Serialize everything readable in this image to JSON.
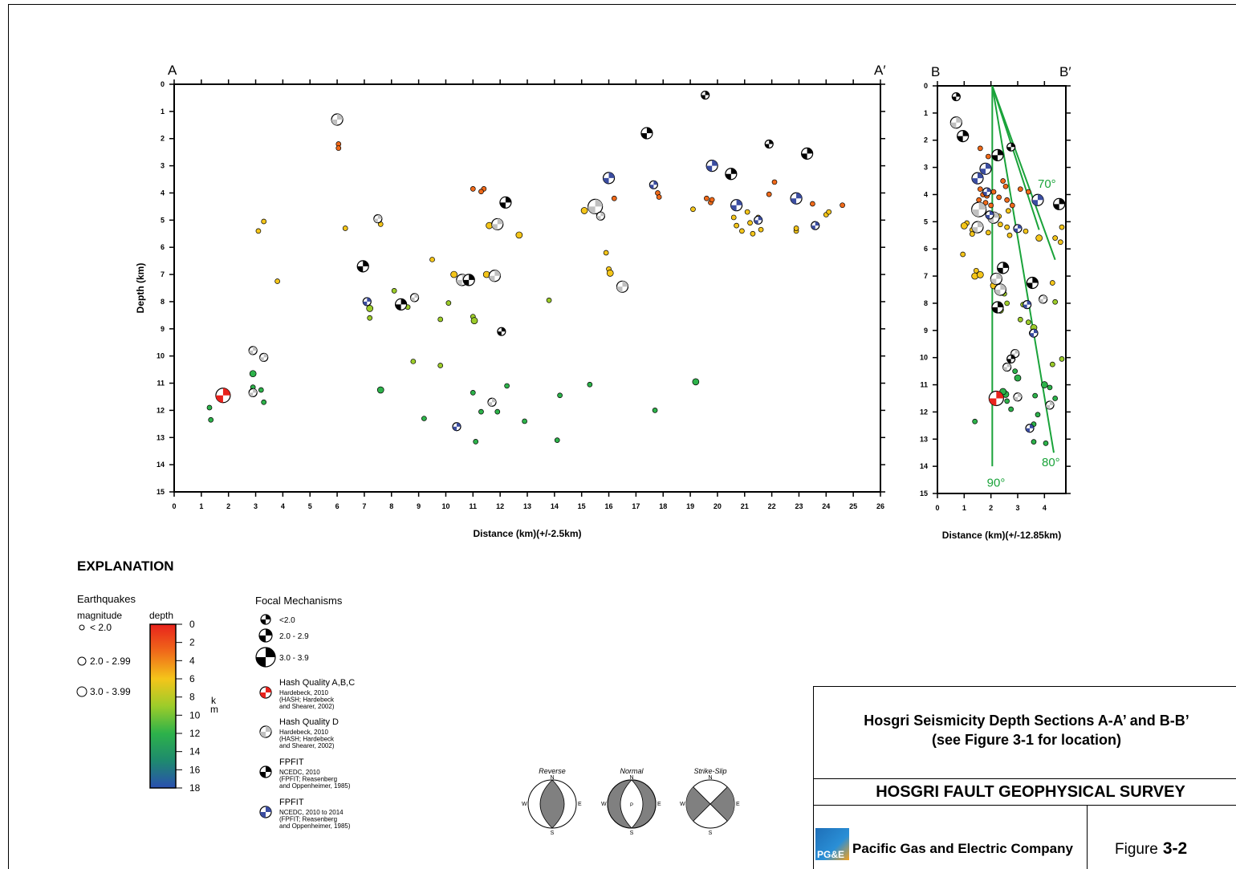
{
  "figure": {
    "explanation_title": "EXPLANATION",
    "title_line1": "Hosgri Seismicity Depth Sections A-A’ and B-B’",
    "title_line2": "(see Figure 3-1 for location)",
    "survey": "HOSGRI FAULT GEOPHYSICAL SURVEY",
    "company": "Pacific Gas and Electric Company",
    "figure_label": "Figure",
    "figure_number": "3-2",
    "logo_text": "PG&E"
  },
  "legend": {
    "earthquakes_title": "Earthquakes",
    "magnitude_label": "magnitude",
    "depth_label": "depth",
    "mag_classes": [
      "< 2.0",
      "2.0 - 2.99",
      "3.0 - 3.99"
    ],
    "depth_ticks": [
      "0",
      "2",
      "4",
      "6",
      "8",
      "10",
      "12",
      "14",
      "16",
      "18"
    ],
    "depth_unit_k": "k",
    "depth_unit_m": "m",
    "focal_title": "Focal Mechanisms",
    "focal_sizes": [
      "<2.0",
      "2.0 - 2.9",
      "3.0 - 3.9"
    ],
    "focal_types": [
      {
        "title": "Hash Quality A,B,C",
        "lines": [
          "Hardebeck, 2010",
          "(HASH; Hardebeck",
          "and Shearer, 2002)"
        ],
        "color": "#e8221c"
      },
      {
        "title": "Hash Quality D",
        "lines": [
          "Hardebeck, 2010",
          "(HASH; Hardebeck",
          "and Shearer, 2002)"
        ],
        "color": "#c0c0c0"
      },
      {
        "title": "FPFIT",
        "lines": [
          "NCEDC, 2010",
          "(FPFIT; Reasenberg",
          "and Oppenheimer, 1985)"
        ],
        "color": "#000000"
      },
      {
        "title": "FPFIT",
        "lines": [
          "NCEDC, 2010 to 2014",
          "(FPFIT; Reasenberg",
          "and Oppenheimer, 1985)"
        ],
        "color": "#3b4da0"
      }
    ],
    "mechanism_types": [
      "Reverse",
      "Normal",
      "Strike-Slip"
    ],
    "compass": [
      "N",
      "S",
      "E",
      "W"
    ],
    "normal_center_label": "P"
  },
  "chart_data": [
    {
      "type": "scatter",
      "section": "A",
      "end_labels": [
        "A",
        "A′"
      ],
      "xlabel": "Distance (km)(+/-2.5km)",
      "ylabel": "Depth (km)",
      "xlim": [
        0,
        26
      ],
      "ylim": [
        15,
        0
      ],
      "xticks": [
        "0",
        "1",
        "2",
        "3",
        "4",
        "5",
        "6",
        "7",
        "8",
        "9",
        "10",
        "11",
        "12",
        "13",
        "14",
        "15",
        "16",
        "17",
        "18",
        "19",
        "20",
        "21",
        "22",
        "23",
        "24",
        "25",
        "26"
      ],
      "yticks": [
        "0",
        "1",
        "2",
        "3",
        "4",
        "5",
        "6",
        "7",
        "8",
        "9",
        "10",
        "11",
        "12",
        "13",
        "14",
        "15"
      ],
      "earthquakes": [
        [
          6.05,
          2.2,
          0
        ],
        [
          6.05,
          2.35,
          0
        ],
        [
          3.3,
          5.05,
          0
        ],
        [
          3.1,
          5.4,
          0
        ],
        [
          6.3,
          5.3,
          0
        ],
        [
          7.6,
          5.15,
          0
        ],
        [
          11.0,
          3.85,
          0
        ],
        [
          11.4,
          3.85,
          0
        ],
        [
          11.3,
          3.95,
          0
        ],
        [
          11.6,
          5.2,
          1
        ],
        [
          12.7,
          5.55,
          1
        ],
        [
          15.1,
          4.65,
          1
        ],
        [
          16.2,
          4.2,
          0
        ],
        [
          17.8,
          4.0,
          0
        ],
        [
          17.85,
          4.15,
          0
        ],
        [
          19.1,
          4.6,
          0
        ],
        [
          19.6,
          4.2,
          0
        ],
        [
          19.75,
          4.35,
          0
        ],
        [
          19.8,
          4.25,
          0
        ],
        [
          20.6,
          4.9,
          0
        ],
        [
          20.7,
          5.2,
          0
        ],
        [
          21.2,
          5.1,
          0
        ],
        [
          21.1,
          4.7,
          0
        ],
        [
          21.5,
          4.9,
          0
        ],
        [
          21.6,
          5.35,
          0
        ],
        [
          21.3,
          5.5,
          0
        ],
        [
          22.1,
          3.6,
          0
        ],
        [
          21.9,
          4.05,
          0
        ],
        [
          22.9,
          5.4,
          0
        ],
        [
          22.9,
          5.3,
          0
        ],
        [
          23.5,
          4.4,
          0
        ],
        [
          24.0,
          4.8,
          0
        ],
        [
          24.1,
          4.7,
          0
        ],
        [
          24.6,
          4.45,
          0
        ],
        [
          20.9,
          5.4,
          0
        ],
        [
          3.8,
          7.25,
          0
        ],
        [
          7.2,
          8.25,
          1
        ],
        [
          7.2,
          8.6,
          0
        ],
        [
          8.1,
          7.6,
          0
        ],
        [
          8.6,
          8.2,
          0
        ],
        [
          9.5,
          6.45,
          0
        ],
        [
          10.3,
          7.0,
          1
        ],
        [
          11.5,
          7.0,
          1
        ],
        [
          15.9,
          6.2,
          0
        ],
        [
          16.0,
          6.8,
          0
        ],
        [
          16.05,
          6.95,
          1
        ],
        [
          13.8,
          7.95,
          0
        ],
        [
          10.1,
          8.05,
          0
        ],
        [
          11.0,
          8.55,
          0
        ],
        [
          11.05,
          8.7,
          1
        ],
        [
          9.8,
          8.65,
          0
        ],
        [
          8.8,
          10.2,
          0
        ],
        [
          9.8,
          10.35,
          0
        ],
        [
          2.9,
          10.65,
          1
        ],
        [
          3.2,
          11.25,
          0
        ],
        [
          2.9,
          11.15,
          0
        ],
        [
          3.3,
          11.7,
          0
        ],
        [
          1.3,
          11.9,
          0
        ],
        [
          1.35,
          12.35,
          0
        ],
        [
          7.6,
          11.25,
          1
        ],
        [
          9.2,
          12.3,
          0
        ],
        [
          11.0,
          11.35,
          0
        ],
        [
          11.3,
          12.05,
          0
        ],
        [
          11.9,
          12.05,
          0
        ],
        [
          12.25,
          11.1,
          0
        ],
        [
          12.9,
          12.4,
          0
        ],
        [
          11.1,
          13.15,
          0
        ],
        [
          14.2,
          11.45,
          0
        ],
        [
          14.1,
          13.1,
          0
        ],
        [
          15.3,
          11.05,
          0
        ],
        [
          17.7,
          12.0,
          0
        ],
        [
          19.2,
          10.95,
          1
        ]
      ],
      "mechanisms": [
        [
          6.0,
          1.3,
          1,
          "gray"
        ],
        [
          19.55,
          0.4,
          0,
          "black"
        ],
        [
          17.4,
          1.8,
          1,
          "black"
        ],
        [
          21.9,
          2.2,
          0,
          "black"
        ],
        [
          23.3,
          2.55,
          1,
          "black"
        ],
        [
          19.8,
          3.0,
          1,
          "blue"
        ],
        [
          20.5,
          3.3,
          1,
          "black"
        ],
        [
          16.0,
          3.45,
          1,
          "blue"
        ],
        [
          17.65,
          3.7,
          0,
          "blue"
        ],
        [
          22.9,
          4.2,
          1,
          "blue"
        ],
        [
          12.2,
          4.35,
          1,
          "black"
        ],
        [
          20.7,
          4.45,
          1,
          "blue"
        ],
        [
          15.5,
          4.5,
          2,
          "gray"
        ],
        [
          15.7,
          4.85,
          0,
          "gray"
        ],
        [
          21.5,
          5.0,
          0,
          "blue"
        ],
        [
          7.5,
          4.95,
          0,
          "gray"
        ],
        [
          11.9,
          5.15,
          1,
          "gray"
        ],
        [
          23.6,
          5.2,
          0,
          "blue"
        ],
        [
          6.95,
          6.7,
          1,
          "black"
        ],
        [
          10.6,
          7.2,
          1,
          "gray"
        ],
        [
          10.85,
          7.2,
          1,
          "black"
        ],
        [
          11.8,
          7.05,
          1,
          "gray"
        ],
        [
          16.5,
          7.45,
          1,
          "gray"
        ],
        [
          8.85,
          7.85,
          0,
          "gray"
        ],
        [
          7.1,
          8.0,
          0,
          "blue"
        ],
        [
          8.35,
          8.1,
          1,
          "black"
        ],
        [
          12.05,
          9.1,
          0,
          "black"
        ],
        [
          2.9,
          9.8,
          0,
          "gray"
        ],
        [
          3.3,
          10.05,
          0,
          "gray"
        ],
        [
          1.8,
          11.45,
          2,
          "red"
        ],
        [
          2.9,
          11.35,
          0,
          "gray"
        ],
        [
          11.7,
          11.7,
          0,
          "gray"
        ],
        [
          10.4,
          12.6,
          0,
          "blue"
        ]
      ]
    },
    {
      "type": "scatter",
      "section": "B",
      "end_labels": [
        "B",
        "B′"
      ],
      "xlabel": "Distance (km)(+/-12.85km)",
      "xlim": [
        0,
        4.8
      ],
      "ylim": [
        15,
        0
      ],
      "xticks": [
        "0",
        "1",
        "2",
        "3",
        "4"
      ],
      "yticks": [
        "0",
        "1",
        "2",
        "3",
        "4",
        "5",
        "6",
        "7",
        "8",
        "9",
        "10",
        "11",
        "12",
        "13",
        "14",
        "15"
      ],
      "dip_lines": [
        {
          "label": "70°",
          "from": [
            2.05,
            0
          ],
          "to": [
            4.4,
            6.4
          ]
        },
        {
          "label": "80°",
          "from": [
            2.05,
            0
          ],
          "to": [
            4.35,
            13.5
          ]
        },
        {
          "label": "90°",
          "from": [
            2.05,
            0
          ],
          "to": [
            2.05,
            14.0
          ]
        },
        {
          "label": "",
          "from": [
            2.05,
            0
          ],
          "to": [
            3.8,
            5.3
          ]
        }
      ],
      "earthquakes": [
        [
          1.6,
          2.3,
          0
        ],
        [
          1.9,
          2.6,
          0
        ],
        [
          1.5,
          3.4,
          0
        ],
        [
          1.6,
          3.8,
          0
        ],
        [
          1.7,
          4.0,
          0
        ],
        [
          1.55,
          4.2,
          0
        ],
        [
          1.8,
          4.3,
          0
        ],
        [
          2.0,
          4.4,
          0
        ],
        [
          1.85,
          4.05,
          0
        ],
        [
          2.1,
          3.9,
          0
        ],
        [
          2.3,
          4.1,
          0
        ],
        [
          2.6,
          4.2,
          0
        ],
        [
          2.55,
          3.7,
          0
        ],
        [
          2.45,
          3.5,
          0
        ],
        [
          3.1,
          3.8,
          0
        ],
        [
          3.4,
          3.9,
          0
        ],
        [
          2.8,
          4.4,
          0
        ],
        [
          2.65,
          4.6,
          0
        ],
        [
          2.3,
          4.8,
          0
        ],
        [
          2.35,
          5.1,
          0
        ],
        [
          2.6,
          5.2,
          0
        ],
        [
          2.7,
          5.5,
          0
        ],
        [
          3.3,
          5.35,
          0
        ],
        [
          1.3,
          5.3,
          0
        ],
        [
          1.1,
          5.05,
          0
        ],
        [
          1.0,
          5.15,
          1
        ],
        [
          1.3,
          5.45,
          0
        ],
        [
          1.9,
          5.4,
          0
        ],
        [
          3.8,
          5.6,
          1
        ],
        [
          4.4,
          5.6,
          0
        ],
        [
          4.6,
          5.75,
          0
        ],
        [
          4.65,
          5.2,
          0
        ],
        [
          0.95,
          6.2,
          0
        ],
        [
          1.4,
          7.0,
          1
        ],
        [
          1.6,
          6.95,
          1
        ],
        [
          1.45,
          6.8,
          0
        ],
        [
          2.1,
          7.35,
          1
        ],
        [
          2.5,
          7.65,
          0
        ],
        [
          4.3,
          7.25,
          0
        ],
        [
          2.35,
          8.25,
          1
        ],
        [
          2.6,
          8.0,
          0
        ],
        [
          3.1,
          8.6,
          0
        ],
        [
          3.2,
          8.05,
          0
        ],
        [
          4.4,
          7.95,
          0
        ],
        [
          3.4,
          8.7,
          0
        ],
        [
          3.6,
          8.9,
          1
        ],
        [
          3.55,
          9.1,
          1
        ],
        [
          4.65,
          10.05,
          0
        ],
        [
          4.3,
          10.25,
          0
        ],
        [
          2.9,
          10.5,
          0
        ],
        [
          3.0,
          10.75,
          1
        ],
        [
          4.0,
          11.0,
          1
        ],
        [
          4.2,
          11.1,
          0
        ],
        [
          3.65,
          11.4,
          0
        ],
        [
          2.55,
          11.35,
          1
        ],
        [
          2.45,
          11.25,
          1
        ],
        [
          2.6,
          11.6,
          0
        ],
        [
          2.75,
          11.9,
          0
        ],
        [
          4.4,
          11.5,
          0
        ],
        [
          3.75,
          12.1,
          0
        ],
        [
          1.4,
          12.35,
          0
        ],
        [
          3.6,
          12.45,
          0
        ],
        [
          4.05,
          13.15,
          0
        ],
        [
          3.6,
          13.1,
          0
        ]
      ],
      "mechanisms": [
        [
          0.7,
          0.4,
          0,
          "black"
        ],
        [
          0.7,
          1.35,
          1,
          "gray"
        ],
        [
          0.95,
          1.85,
          1,
          "black"
        ],
        [
          2.75,
          2.25,
          0,
          "black"
        ],
        [
          2.25,
          2.55,
          1,
          "black"
        ],
        [
          1.8,
          3.05,
          1,
          "blue"
        ],
        [
          1.5,
          3.4,
          1,
          "blue"
        ],
        [
          1.85,
          3.9,
          0,
          "blue"
        ],
        [
          3.75,
          4.2,
          1,
          "blue"
        ],
        [
          4.55,
          4.35,
          1,
          "black"
        ],
        [
          1.55,
          4.55,
          2,
          "gray"
        ],
        [
          2.1,
          4.85,
          1,
          "gray"
        ],
        [
          1.95,
          4.75,
          0,
          "blue"
        ],
        [
          1.5,
          5.2,
          1,
          "gray"
        ],
        [
          3.0,
          5.25,
          0,
          "blue"
        ],
        [
          2.45,
          6.7,
          1,
          "black"
        ],
        [
          2.2,
          7.1,
          1,
          "gray"
        ],
        [
          2.35,
          7.5,
          1,
          "gray"
        ],
        [
          3.55,
          7.25,
          1,
          "black"
        ],
        [
          3.95,
          7.85,
          0,
          "gray"
        ],
        [
          2.25,
          8.15,
          1,
          "black"
        ],
        [
          3.35,
          8.05,
          0,
          "blue"
        ],
        [
          3.6,
          9.1,
          0,
          "blue"
        ],
        [
          2.9,
          9.85,
          0,
          "gray"
        ],
        [
          2.6,
          10.35,
          0,
          "gray"
        ],
        [
          2.75,
          10.05,
          0,
          "black"
        ],
        [
          2.2,
          11.5,
          2,
          "red"
        ],
        [
          3.0,
          11.45,
          0,
          "gray"
        ],
        [
          4.2,
          11.75,
          0,
          "gray"
        ],
        [
          3.45,
          12.6,
          0,
          "blue"
        ]
      ]
    }
  ],
  "colors": {
    "dip_line": "#1aa33a",
    "depth_scale": [
      "#e8221c",
      "#f06a1a",
      "#f4c51a",
      "#9ccc2a",
      "#2db24a",
      "#1e8a6e",
      "#2a4fb0"
    ],
    "mech_red": "#e8221c",
    "mech_gray": "#c0c0c0",
    "mech_blue": "#3b4da0"
  }
}
